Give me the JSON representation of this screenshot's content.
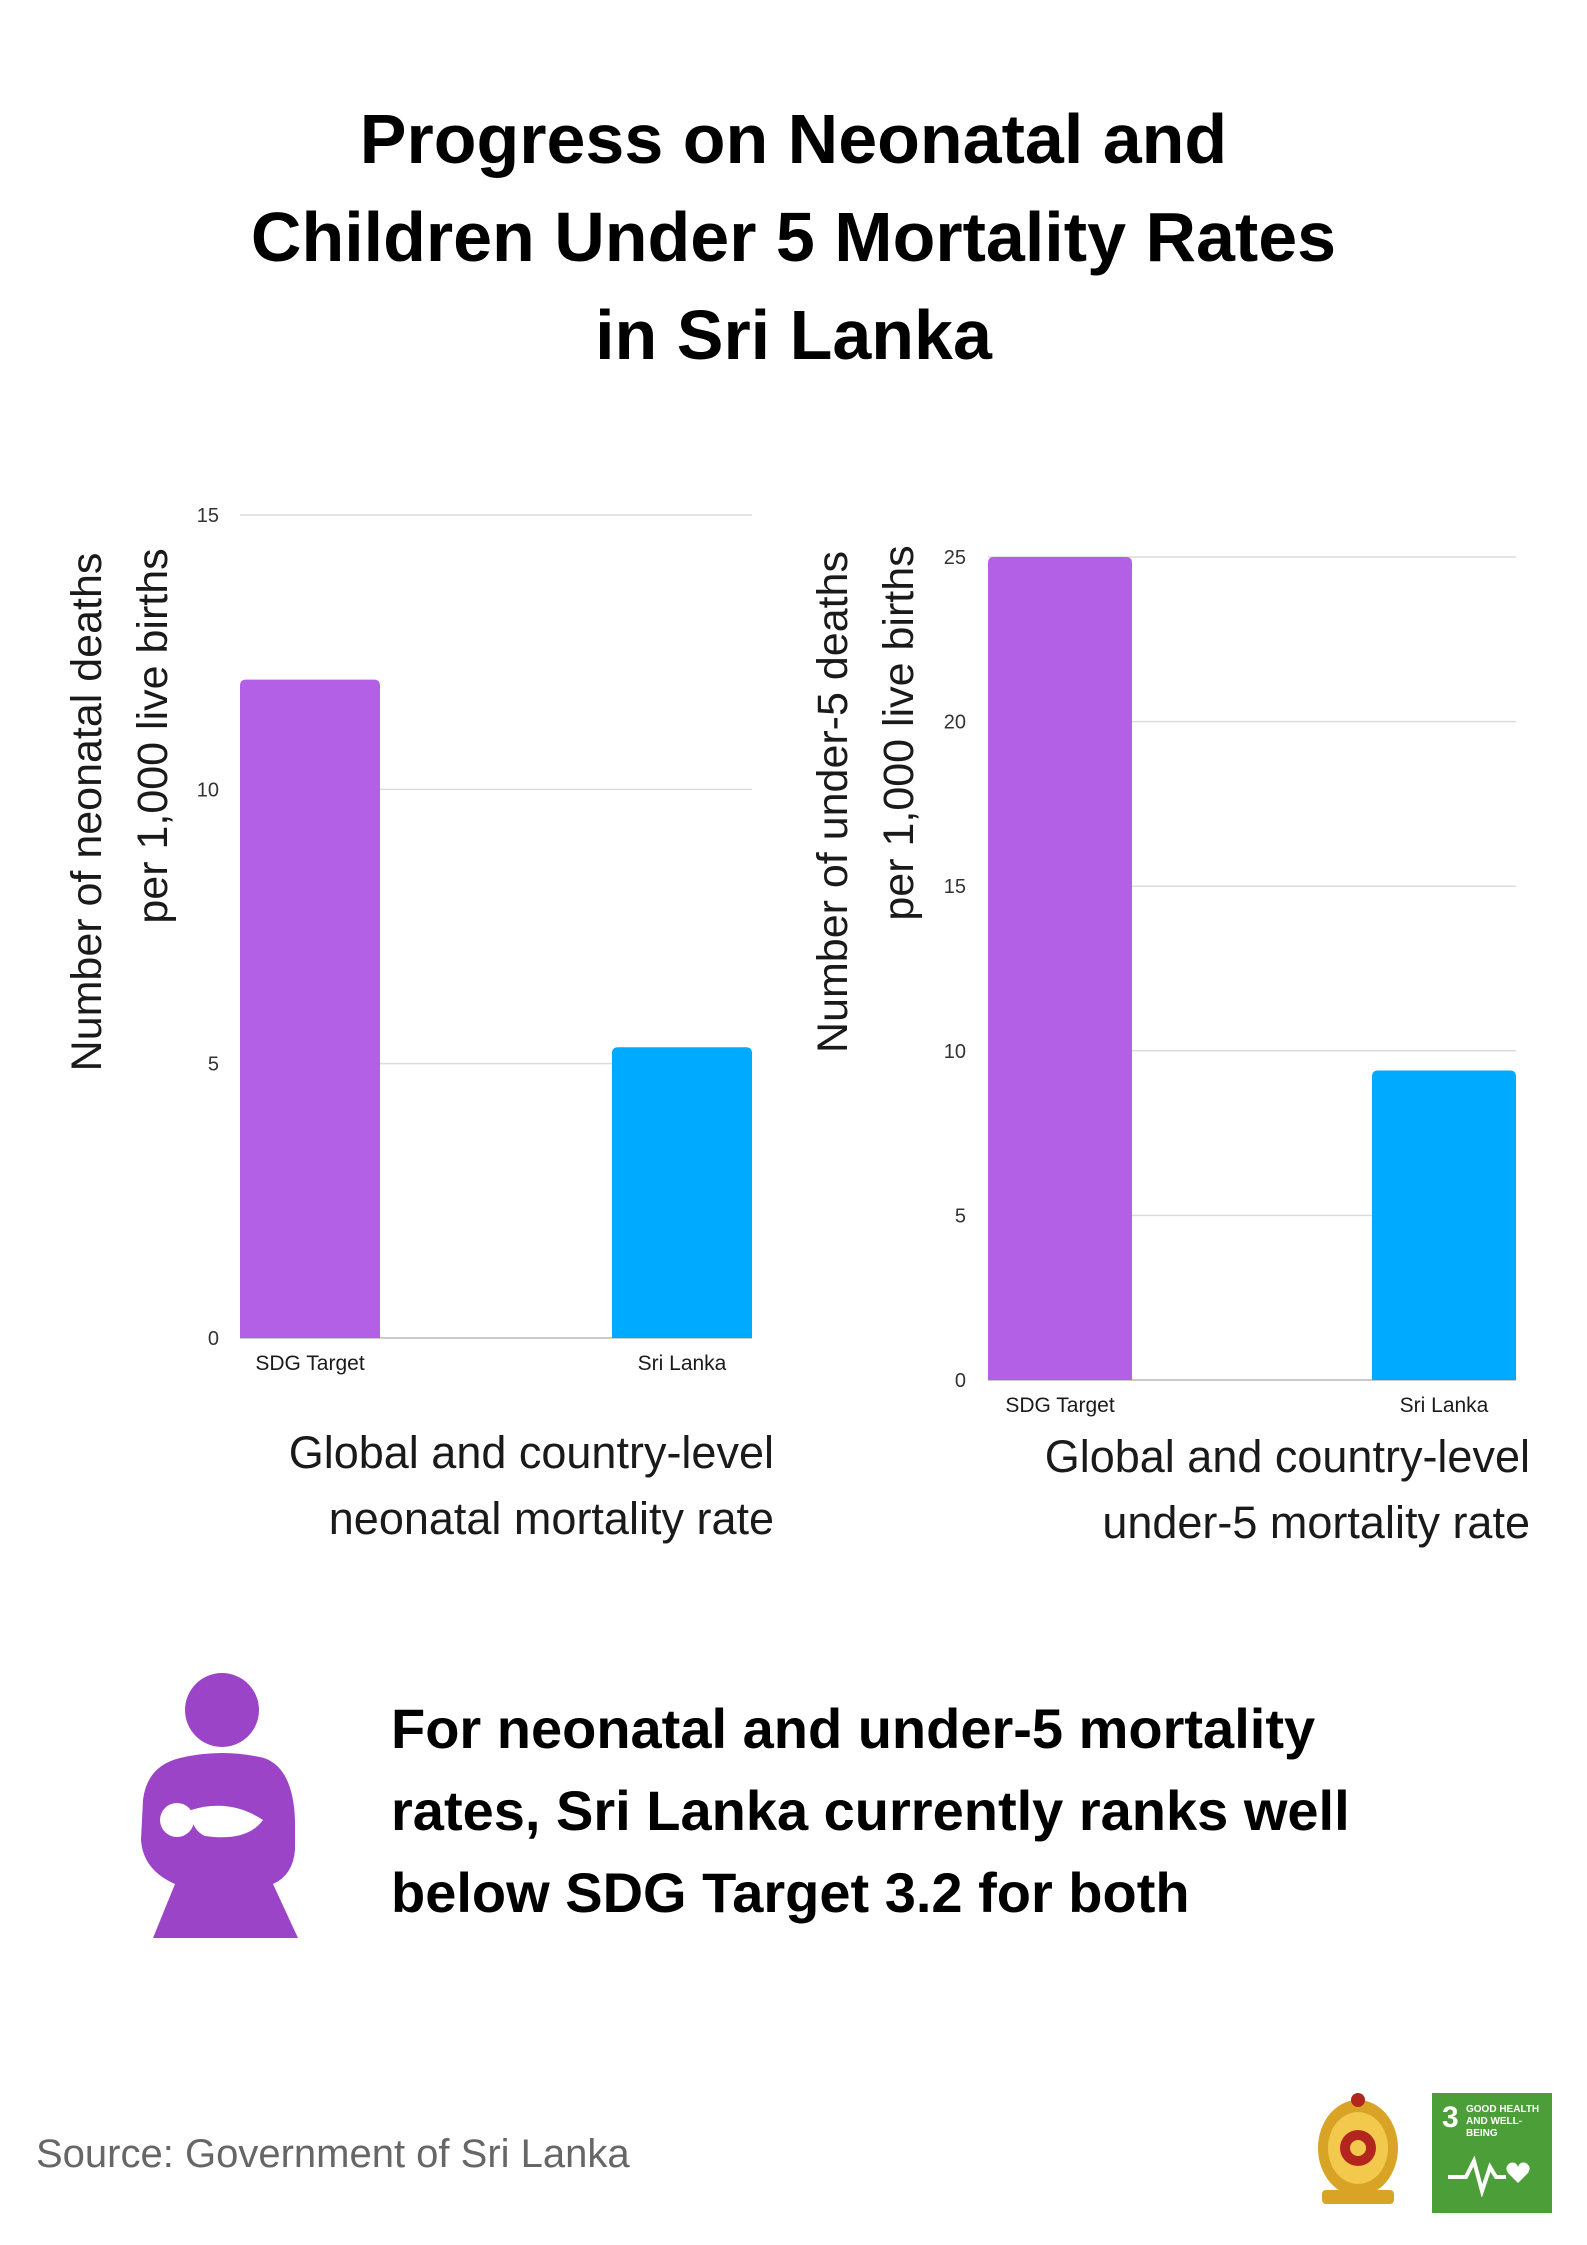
{
  "title": {
    "line1": "Progress on Neonatal and",
    "line2": "Children Under 5 Mortality Rates",
    "line3": "in Sri Lanka"
  },
  "colors": {
    "sdg_bar": "#b460e6",
    "country_bar": "#00aaff",
    "icon": "#9b44c7",
    "sdg_green": "#4c9f38"
  },
  "chart_data": [
    {
      "type": "bar",
      "categories": [
        "SDG Target",
        "Sri Lanka"
      ],
      "values": [
        12,
        5.3
      ],
      "ylabel_line1": "Number of neonatal deaths",
      "ylabel_line2": "per 1,000 live births",
      "yticks": [
        0,
        5,
        10,
        15
      ],
      "ylim": [
        0,
        15
      ],
      "grid": true,
      "caption_line1": "Global and country-level",
      "caption_line2": "neonatal mortality rate"
    },
    {
      "type": "bar",
      "categories": [
        "SDG Target",
        "Sri Lanka"
      ],
      "values": [
        25,
        9.4
      ],
      "ylabel_line1": "Number of under-5 deaths",
      "ylabel_line2": "per 1,000 live births",
      "yticks": [
        0,
        5,
        10,
        15,
        20,
        25
      ],
      "ylim": [
        0,
        25
      ],
      "grid": true,
      "caption_line1": "Global and country-level",
      "caption_line2": "under-5 mortality rate"
    }
  ],
  "callout": {
    "line1": "For neonatal and under-5 mortality",
    "line2": "rates, Sri Lanka currently ranks well",
    "line3": "below SDG Target 3.2 for both"
  },
  "source": "Source: Government of Sri Lanka",
  "sdg_badge": {
    "number": "3",
    "line1": "GOOD HEALTH",
    "line2": "AND WELL-BEING"
  },
  "icons": {
    "mother": "mother-holding-baby-icon",
    "emblem": "sri-lanka-emblem-icon",
    "pulse": "heart-pulse-icon"
  }
}
